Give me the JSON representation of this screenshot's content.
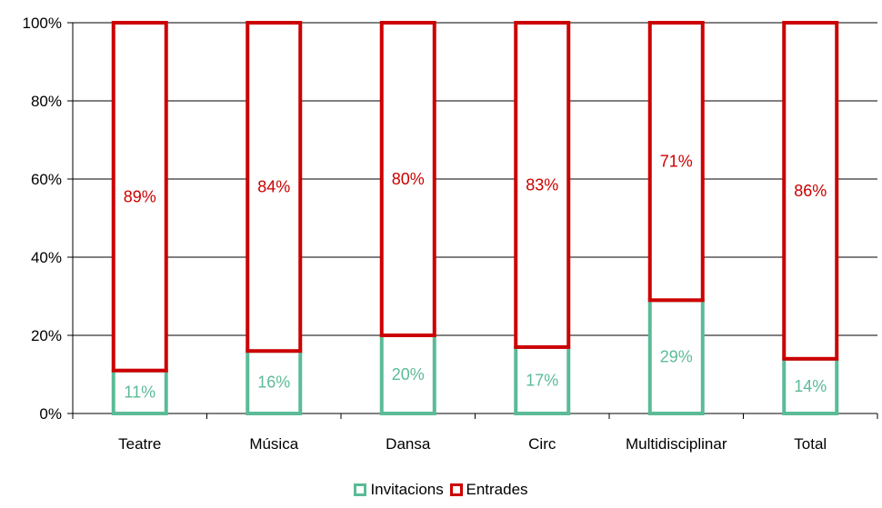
{
  "chart_data": {
    "type": "bar",
    "stacked": true,
    "percent": true,
    "categories": [
      "Teatre",
      "Música",
      "Dansa",
      "Circ",
      "Multidisciplinar",
      "Total"
    ],
    "series": [
      {
        "name": "Invitacions",
        "values": [
          11,
          16,
          20,
          17,
          29,
          14
        ],
        "labels": [
          "11%",
          "16%",
          "20%",
          "17%",
          "29%",
          "14%"
        ],
        "color": "#5bbb97"
      },
      {
        "name": "Entrades",
        "values": [
          89,
          84,
          80,
          83,
          71,
          86
        ],
        "labels": [
          "89%",
          "84%",
          "80%",
          "83%",
          "71%",
          "86%"
        ],
        "color": "#cc0000"
      }
    ],
    "ylim": [
      0,
      100
    ],
    "yticks": [
      "0%",
      "20%",
      "40%",
      "60%",
      "80%",
      "100%"
    ],
    "grid": true,
    "legend_position": "bottom-center"
  }
}
